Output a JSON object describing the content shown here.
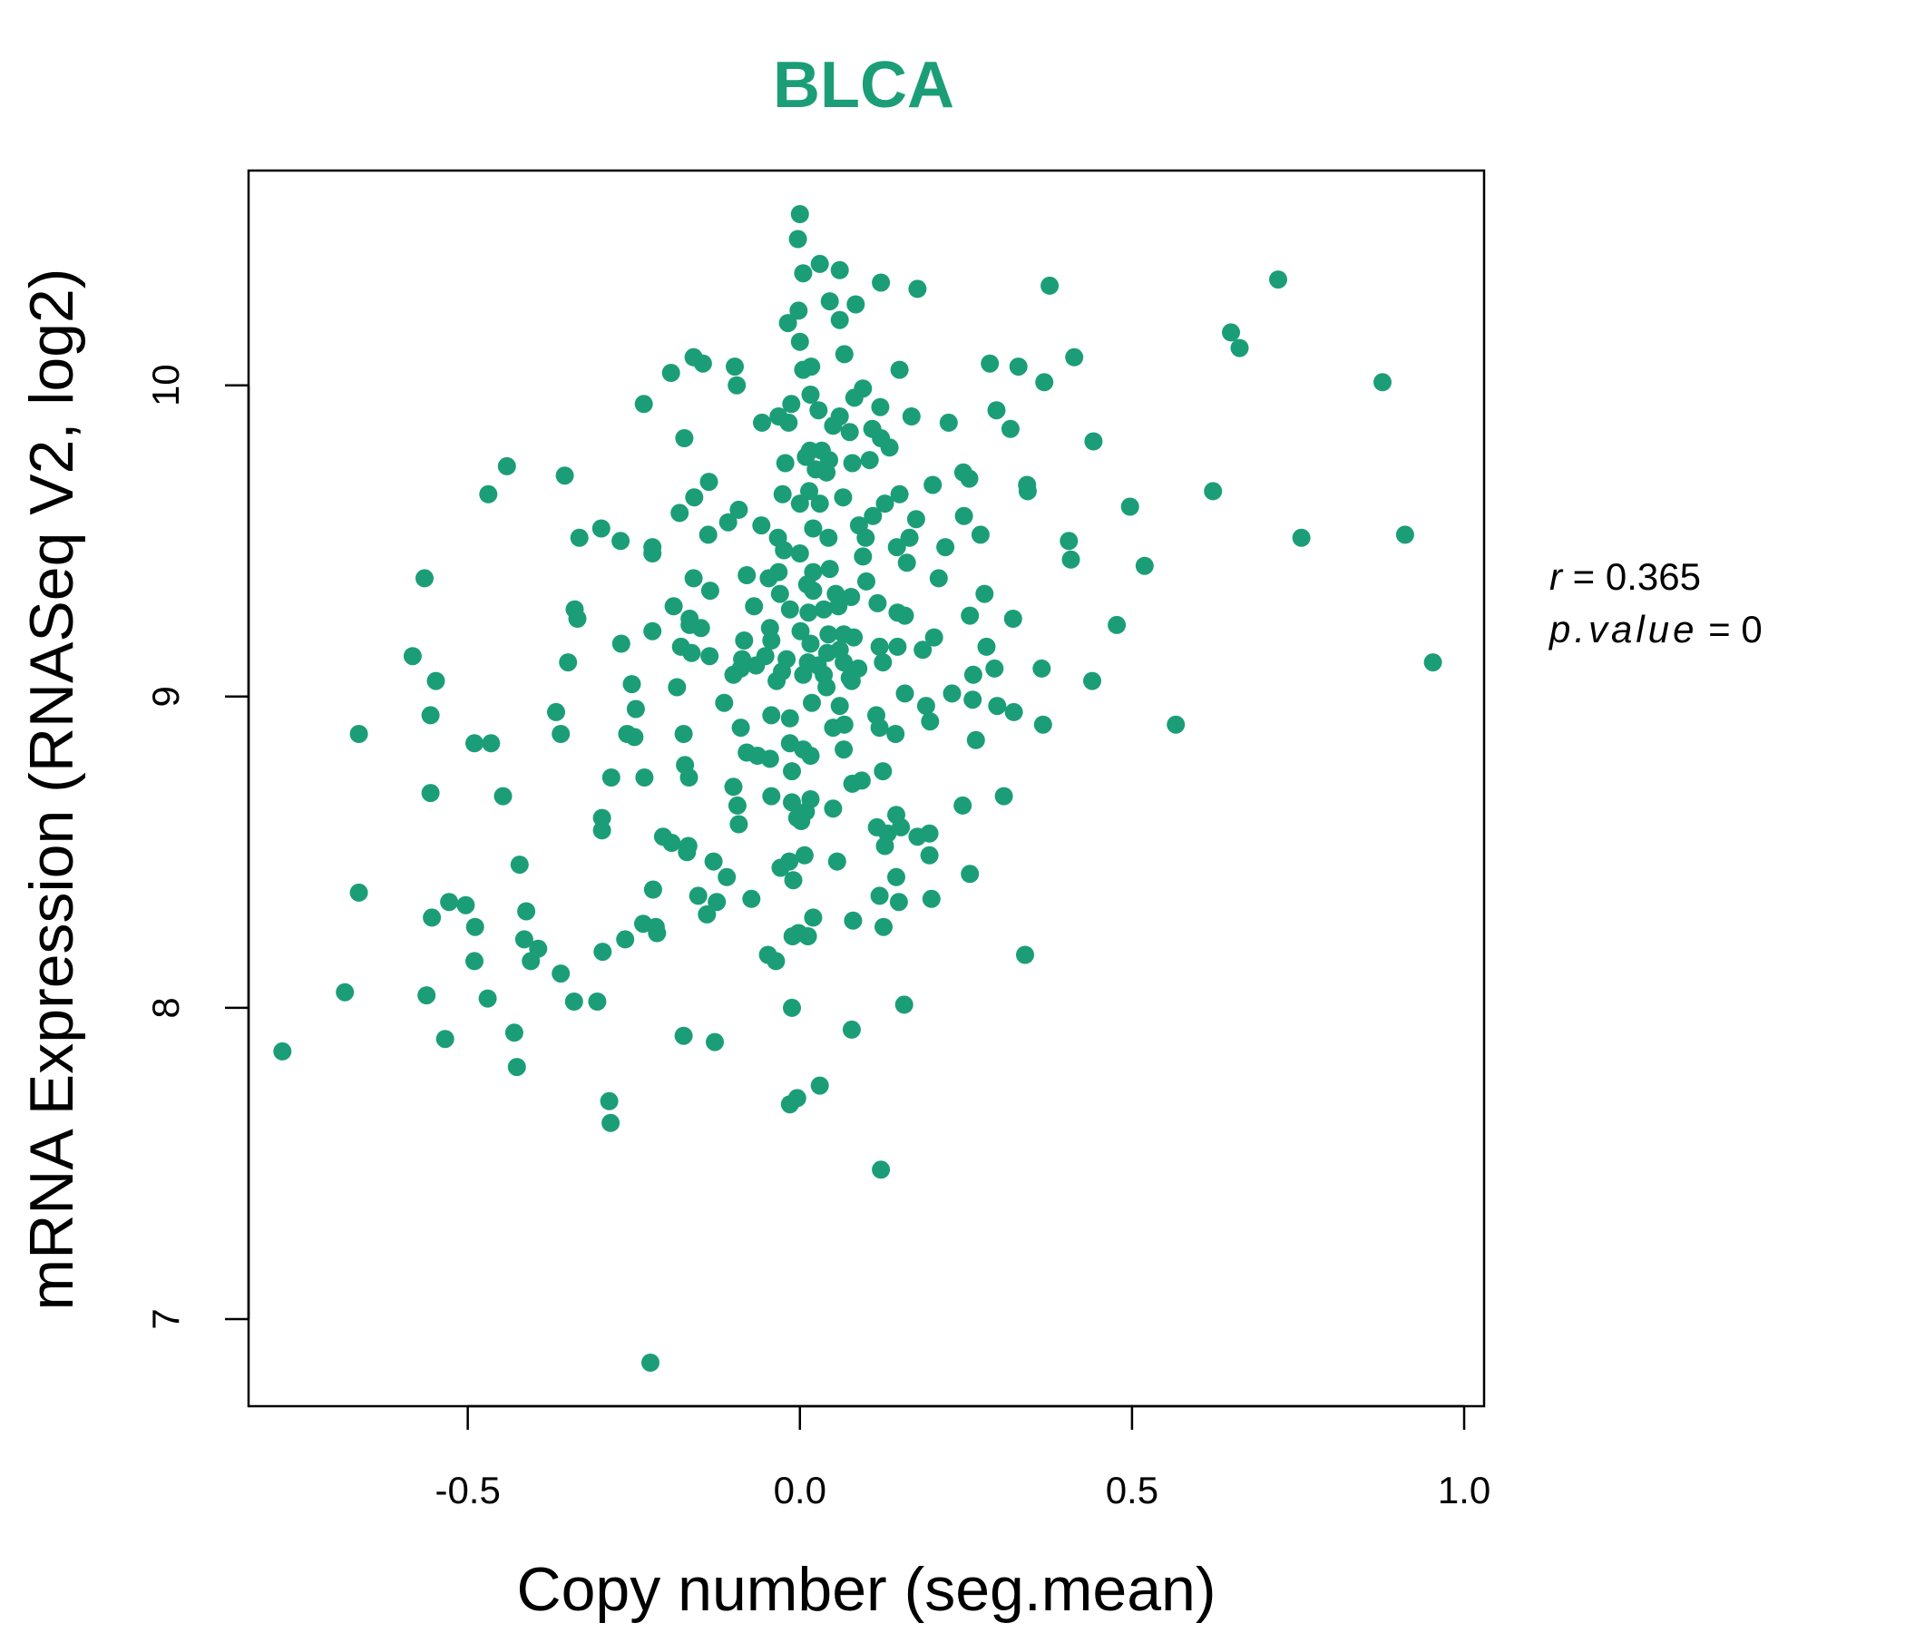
{
  "chart_data": {
    "type": "scatter",
    "title": "BLCA",
    "xlabel": "Copy number (seg.mean)",
    "ylabel": "mRNA Expression (RNASeq V2, log2)",
    "xlim": [
      -0.83,
      1.03
    ],
    "ylim": [
      6.72,
      10.69
    ],
    "xticks": [
      -0.5,
      0.0,
      0.5,
      1.0
    ],
    "xtick_labels": [
      "-0.5",
      "0.0",
      "0.5",
      "1.0"
    ],
    "yticks": [
      7,
      8,
      9,
      10
    ],
    "ytick_labels": [
      "7",
      "8",
      "9",
      "10"
    ],
    "grid": false,
    "stats": {
      "r_label": "r",
      "r_value": "0.365",
      "p_label": "p.value",
      "p_value": "0"
    },
    "points": [
      [
        0.0,
        10.55
      ],
      [
        -0.003,
        10.47
      ],
      [
        0.03,
        10.39
      ],
      [
        0.06,
        10.37
      ],
      [
        0.005,
        10.36
      ],
      [
        0.122,
        10.33
      ],
      [
        0.177,
        10.31
      ],
      [
        0.376,
        10.32
      ],
      [
        0.72,
        10.34
      ],
      [
        0.045,
        10.27
      ],
      [
        -0.002,
        10.24
      ],
      [
        0.084,
        10.26
      ],
      [
        0.06,
        10.21
      ],
      [
        -0.018,
        10.2
      ],
      [
        0.0,
        10.14
      ],
      [
        0.649,
        10.17
      ],
      [
        0.662,
        10.12
      ],
      [
        0.413,
        10.09
      ],
      [
        -0.16,
        10.09
      ],
      [
        -0.146,
        10.07
      ],
      [
        -0.098,
        10.06
      ],
      [
        -0.194,
        10.04
      ],
      [
        0.005,
        10.05
      ],
      [
        0.017,
        10.06
      ],
      [
        0.067,
        10.1
      ],
      [
        0.15,
        10.05
      ],
      [
        0.286,
        10.07
      ],
      [
        0.329,
        10.06
      ],
      [
        0.368,
        10.01
      ],
      [
        0.877,
        10.01
      ],
      [
        -0.095,
        10.0
      ],
      [
        0.016,
        9.97
      ],
      [
        0.082,
        9.96
      ],
      [
        0.095,
        9.99
      ],
      [
        -0.235,
        9.94
      ],
      [
        -0.013,
        9.94
      ],
      [
        0.028,
        9.92
      ],
      [
        0.06,
        9.9
      ],
      [
        0.121,
        9.93
      ],
      [
        0.296,
        9.92
      ],
      [
        -0.057,
        9.88
      ],
      [
        0.05,
        9.87
      ],
      [
        0.075,
        9.85
      ],
      [
        0.109,
        9.86
      ],
      [
        -0.032,
        9.9
      ],
      [
        -0.017,
        9.88
      ],
      [
        0.168,
        9.9
      ],
      [
        0.224,
        9.88
      ],
      [
        0.317,
        9.86
      ],
      [
        -0.174,
        9.83
      ],
      [
        0.122,
        9.83
      ],
      [
        0.135,
        9.8
      ],
      [
        0.442,
        9.82
      ],
      [
        0.015,
        9.79
      ],
      [
        0.033,
        9.79
      ],
      [
        0.009,
        9.77
      ],
      [
        0.044,
        9.76
      ],
      [
        0.079,
        9.75
      ],
      [
        0.105,
        9.76
      ],
      [
        -0.441,
        9.74
      ],
      [
        -0.022,
        9.75
      ],
      [
        0.024,
        9.73
      ],
      [
        0.04,
        9.72
      ],
      [
        -0.354,
        9.71
      ],
      [
        -0.137,
        9.69
      ],
      [
        0.2,
        9.68
      ],
      [
        0.246,
        9.72
      ],
      [
        0.255,
        9.7
      ],
      [
        0.342,
        9.68
      ],
      [
        0.343,
        9.66
      ],
      [
        0.622,
        9.66
      ],
      [
        -0.469,
        9.65
      ],
      [
        -0.159,
        9.64
      ],
      [
        -0.026,
        9.65
      ],
      [
        0.014,
        9.66
      ],
      [
        0.065,
        9.64
      ],
      [
        0.15,
        9.65
      ],
      [
        0.03,
        9.62
      ],
      [
        0.0,
        9.62
      ],
      [
        0.128,
        9.62
      ],
      [
        -0.181,
        9.59
      ],
      [
        -0.092,
        9.6
      ],
      [
        0.11,
        9.58
      ],
      [
        0.175,
        9.57
      ],
      [
        0.247,
        9.58
      ],
      [
        0.497,
        9.61
      ],
      [
        -0.108,
        9.56
      ],
      [
        -0.058,
        9.55
      ],
      [
        0.02,
        9.54
      ],
      [
        0.089,
        9.55
      ],
      [
        0.043,
        9.51
      ],
      [
        -0.138,
        9.52
      ],
      [
        -0.033,
        9.51
      ],
      [
        0.099,
        9.51
      ],
      [
        0.165,
        9.51
      ],
      [
        0.272,
        9.52
      ],
      [
        -0.332,
        9.51
      ],
      [
        -0.299,
        9.54
      ],
      [
        -0.27,
        9.5
      ],
      [
        -0.222,
        9.48
      ],
      [
        -0.222,
        9.46
      ],
      [
        0.405,
        9.5
      ],
      [
        0.755,
        9.51
      ],
      [
        0.911,
        9.52
      ],
      [
        -0.024,
        9.47
      ],
      [
        0.0,
        9.46
      ],
      [
        0.095,
        9.45
      ],
      [
        0.146,
        9.48
      ],
      [
        0.161,
        9.43
      ],
      [
        0.219,
        9.48
      ],
      [
        0.408,
        9.44
      ],
      [
        0.519,
        9.42
      ],
      [
        -0.565,
        9.38
      ],
      [
        -0.16,
        9.38
      ],
      [
        -0.08,
        9.39
      ],
      [
        -0.047,
        9.38
      ],
      [
        -0.032,
        9.4
      ],
      [
        0.02,
        9.4
      ],
      [
        0.045,
        9.41
      ],
      [
        0.1,
        9.37
      ],
      [
        0.209,
        9.38
      ],
      [
        0.011,
        9.36
      ],
      [
        -0.135,
        9.34
      ],
      [
        -0.03,
        9.33
      ],
      [
        0.02,
        9.34
      ],
      [
        0.054,
        9.33
      ],
      [
        0.077,
        9.32
      ],
      [
        0.117,
        9.3
      ],
      [
        0.278,
        9.33
      ],
      [
        -0.339,
        9.28
      ],
      [
        -0.335,
        9.25
      ],
      [
        -0.19,
        9.29
      ],
      [
        -0.069,
        9.29
      ],
      [
        -0.015,
        9.28
      ],
      [
        0.013,
        9.27
      ],
      [
        0.036,
        9.28
      ],
      [
        0.058,
        9.29
      ],
      [
        0.147,
        9.27
      ],
      [
        0.158,
        9.26
      ],
      [
        0.256,
        9.26
      ],
      [
        0.321,
        9.25
      ],
      [
        0.477,
        9.23
      ],
      [
        -0.166,
        9.25
      ],
      [
        -0.166,
        9.23
      ],
      [
        -0.149,
        9.22
      ],
      [
        -0.045,
        9.22
      ],
      [
        0.001,
        9.21
      ],
      [
        0.066,
        9.2
      ],
      [
        0.043,
        9.2
      ],
      [
        0.081,
        9.19
      ],
      [
        0.202,
        9.19
      ],
      [
        -0.222,
        9.21
      ],
      [
        -0.269,
        9.17
      ],
      [
        -0.179,
        9.16
      ],
      [
        -0.084,
        9.18
      ],
      [
        -0.043,
        9.18
      ],
      [
        0.016,
        9.17
      ],
      [
        0.041,
        9.14
      ],
      [
        0.06,
        9.15
      ],
      [
        0.12,
        9.16
      ],
      [
        0.147,
        9.16
      ],
      [
        0.185,
        9.15
      ],
      [
        0.281,
        9.16
      ],
      [
        -0.583,
        9.13
      ],
      [
        -0.136,
        9.13
      ],
      [
        -0.163,
        9.14
      ],
      [
        -0.087,
        9.12
      ],
      [
        -0.052,
        9.13
      ],
      [
        -0.02,
        9.12
      ],
      [
        0.012,
        9.11
      ],
      [
        0.027,
        9.1
      ],
      [
        0.066,
        9.11
      ],
      [
        0.088,
        9.09
      ],
      [
        0.125,
        9.11
      ],
      [
        0.953,
        9.11
      ],
      [
        -0.349,
        9.11
      ],
      [
        -0.066,
        9.1
      ],
      [
        -0.089,
        9.09
      ],
      [
        -0.1,
        9.07
      ],
      [
        -0.027,
        9.08
      ],
      [
        0.005,
        9.07
      ],
      [
        0.036,
        9.07
      ],
      [
        0.075,
        9.06
      ],
      [
        0.261,
        9.07
      ],
      [
        0.293,
        9.09
      ],
      [
        0.364,
        9.09
      ],
      [
        -0.548,
        9.05
      ],
      [
        -0.253,
        9.04
      ],
      [
        -0.185,
        9.03
      ],
      [
        -0.035,
        9.05
      ],
      [
        0.078,
        9.05
      ],
      [
        0.158,
        9.01
      ],
      [
        0.229,
        9.01
      ],
      [
        0.44,
        9.05
      ],
      [
        -0.114,
        8.98
      ],
      [
        0.04,
        9.03
      ],
      [
        0.018,
        8.98
      ],
      [
        0.06,
        8.97
      ],
      [
        0.19,
        8.97
      ],
      [
        0.26,
        8.99
      ],
      [
        0.297,
        8.97
      ],
      [
        0.322,
        8.95
      ],
      [
        -0.556,
        8.94
      ],
      [
        -0.247,
        8.96
      ],
      [
        -0.367,
        8.95
      ],
      [
        -0.043,
        8.94
      ],
      [
        -0.015,
        8.93
      ],
      [
        0.115,
        8.94
      ],
      [
        0.196,
        8.92
      ],
      [
        0.366,
        8.91
      ],
      [
        0.566,
        8.91
      ],
      [
        -0.664,
        8.88
      ],
      [
        -0.36,
        8.88
      ],
      [
        -0.26,
        8.88
      ],
      [
        -0.249,
        8.87
      ],
      [
        -0.175,
        8.88
      ],
      [
        -0.089,
        8.9
      ],
      [
        0.05,
        8.9
      ],
      [
        0.067,
        8.91
      ],
      [
        0.12,
        8.9
      ],
      [
        0.144,
        8.88
      ],
      [
        0.265,
        8.86
      ],
      [
        -0.49,
        8.85
      ],
      [
        -0.465,
        8.85
      ],
      [
        -0.08,
        8.82
      ],
      [
        -0.064,
        8.81
      ],
      [
        -0.045,
        8.8
      ],
      [
        -0.015,
        8.85
      ],
      [
        0.005,
        8.83
      ],
      [
        0.066,
        8.83
      ],
      [
        0.016,
        8.81
      ],
      [
        -0.173,
        8.78
      ],
      [
        -0.167,
        8.74
      ],
      [
        -0.284,
        8.74
      ],
      [
        -0.234,
        8.74
      ],
      [
        -0.012,
        8.76
      ],
      [
        0.079,
        8.72
      ],
      [
        0.093,
        8.73
      ],
      [
        0.125,
        8.76
      ],
      [
        -0.1,
        8.71
      ],
      [
        -0.556,
        8.69
      ],
      [
        -0.447,
        8.68
      ],
      [
        -0.094,
        8.65
      ],
      [
        -0.043,
        8.68
      ],
      [
        -0.012,
        8.66
      ],
      [
        0.016,
        8.67
      ],
      [
        0.05,
        8.64
      ],
      [
        0.009,
        8.63
      ],
      [
        -0.004,
        8.61
      ],
      [
        0.002,
        8.6
      ],
      [
        0.245,
        8.65
      ],
      [
        0.307,
        8.68
      ],
      [
        -0.298,
        8.61
      ],
      [
        -0.298,
        8.57
      ],
      [
        -0.092,
        8.59
      ],
      [
        0.116,
        8.58
      ],
      [
        0.132,
        8.56
      ],
      [
        0.145,
        8.62
      ],
      [
        0.152,
        8.58
      ],
      [
        0.177,
        8.55
      ],
      [
        0.195,
        8.56
      ],
      [
        -0.206,
        8.55
      ],
      [
        -0.193,
        8.53
      ],
      [
        -0.168,
        8.52
      ],
      [
        -0.17,
        8.5
      ],
      [
        -0.13,
        8.47
      ],
      [
        -0.11,
        8.42
      ],
      [
        0.128,
        8.52
      ],
      [
        0.195,
        8.49
      ],
      [
        0.007,
        8.49
      ],
      [
        0.056,
        8.47
      ],
      [
        -0.029,
        8.45
      ],
      [
        -0.016,
        8.47
      ],
      [
        -0.422,
        8.46
      ],
      [
        -0.01,
        8.41
      ],
      [
        0.145,
        8.42
      ],
      [
        0.256,
        8.43
      ],
      [
        -0.221,
        8.38
      ],
      [
        -0.153,
        8.36
      ],
      [
        -0.125,
        8.34
      ],
      [
        -0.073,
        8.35
      ],
      [
        -0.14,
        8.3
      ],
      [
        0.12,
        8.36
      ],
      [
        0.149,
        8.34
      ],
      [
        0.198,
        8.35
      ],
      [
        -0.664,
        8.37
      ],
      [
        -0.528,
        8.34
      ],
      [
        -0.503,
        8.33
      ],
      [
        -0.554,
        8.29
      ],
      [
        -0.412,
        8.31
      ],
      [
        -0.489,
        8.26
      ],
      [
        0.02,
        8.29
      ],
      [
        0.08,
        8.28
      ],
      [
        -0.236,
        8.27
      ],
      [
        -0.217,
        8.26
      ],
      [
        -0.215,
        8.24
      ],
      [
        -0.263,
        8.22
      ],
      [
        -0.011,
        8.23
      ],
      [
        -0.002,
        8.24
      ],
      [
        0.012,
        8.23
      ],
      [
        0.126,
        8.26
      ],
      [
        -0.415,
        8.22
      ],
      [
        -0.394,
        8.19
      ],
      [
        -0.405,
        8.15
      ],
      [
        -0.49,
        8.15
      ],
      [
        -0.297,
        8.18
      ],
      [
        -0.048,
        8.17
      ],
      [
        -0.036,
        8.15
      ],
      [
        0.339,
        8.17
      ],
      [
        -0.685,
        8.05
      ],
      [
        -0.562,
        8.04
      ],
      [
        -0.47,
        8.03
      ],
      [
        -0.36,
        8.11
      ],
      [
        -0.34,
        8.02
      ],
      [
        -0.305,
        8.02
      ],
      [
        -0.012,
        8.0
      ],
      [
        0.157,
        8.01
      ],
      [
        -0.779,
        7.86
      ],
      [
        -0.534,
        7.9
      ],
      [
        -0.43,
        7.92
      ],
      [
        -0.426,
        7.81
      ],
      [
        -0.175,
        7.91
      ],
      [
        -0.128,
        7.89
      ],
      [
        0.078,
        7.93
      ],
      [
        -0.287,
        7.7
      ],
      [
        -0.285,
        7.63
      ],
      [
        -0.015,
        7.69
      ],
      [
        -0.004,
        7.71
      ],
      [
        0.03,
        7.75
      ],
      [
        0.122,
        7.48
      ],
      [
        -0.225,
        6.86
      ]
    ]
  }
}
